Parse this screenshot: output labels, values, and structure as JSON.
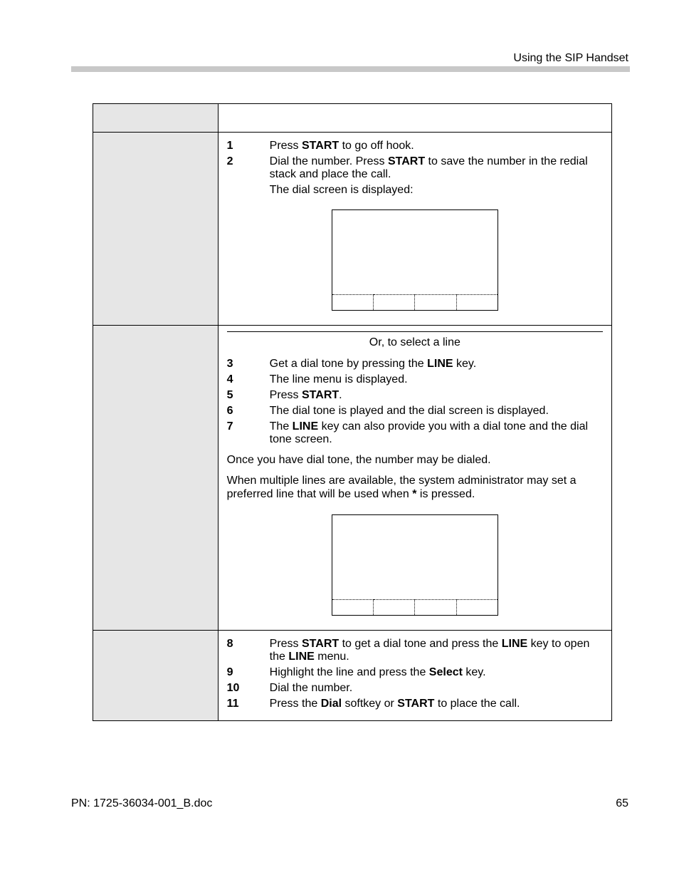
{
  "header": {
    "section_title": "Using the SIP Handset"
  },
  "footer": {
    "pn": "PN: 1725-36034-001_B.doc",
    "page": "65"
  },
  "colors": {
    "rule_gray": "#c8c8c8",
    "cell_gray": "#e6e6e6",
    "text": "#000000",
    "bg": "#ffffff"
  },
  "rows": {
    "r1_right": {
      "step1": {
        "num": "1",
        "pre": "Press ",
        "key": "START",
        "post": " to go off hook."
      },
      "step2": {
        "num": "2",
        "pre": "Dial the number. Press ",
        "key": "START",
        "post": " to save the number in the redial stack and place the call."
      },
      "note": "The dial screen is displayed:"
    },
    "or_block": {
      "label": "Or, to select a line"
    },
    "r2_right": {
      "step3": {
        "num": "3",
        "pre": "Get a dial tone by pressing the ",
        "key": "LINE",
        "post": " key."
      },
      "step4": {
        "num": "4",
        "txt": "The line menu is displayed."
      },
      "step5": {
        "num": "5",
        "pre": "Press ",
        "key": "START",
        "post": "."
      },
      "step6": {
        "num": "6",
        "txt": "The dial tone is played and the dial screen is displayed."
      },
      "step7": {
        "num": "7",
        "pre": "The ",
        "key": "LINE",
        "post": " key can also provide you with a dial tone and the dial tone screen."
      },
      "para_a": "Once you have dial tone, the number may be dialed.",
      "para_b_pre": "When multiple lines are available, the system administrator may set a preferred line that will be used when ",
      "para_b_key": "*",
      "para_b_post": " is pressed."
    },
    "r3_right": {
      "step8": {
        "num": "8",
        "pre": "Press ",
        "keyA": "START",
        "mid": " to get a dial tone and press the ",
        "keyB": "LINE",
        "post": " key to open the ",
        "keyC": "LINE",
        "post2": " menu."
      },
      "step9": {
        "num": "9",
        "pre": "Highlight the line and press the ",
        "key": "Select",
        "post": " key."
      },
      "step10": {
        "num": "10",
        "txt": "Dial the number."
      },
      "step11": {
        "num": "11",
        "pre": "Press the ",
        "keyA": "Dial",
        "mid": " softkey or ",
        "keyB": "START",
        "post": " to place the call."
      }
    }
  }
}
